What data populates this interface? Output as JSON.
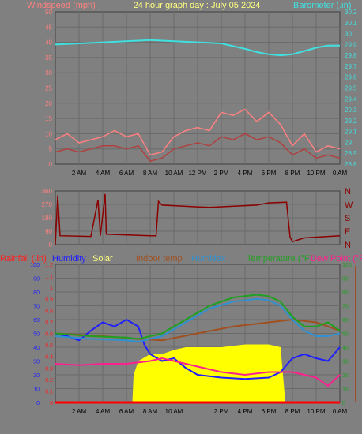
{
  "chart_data": [
    {
      "type": "line",
      "title": "24 hour graph day : July 05 2024",
      "left_axis": {
        "label": "Windspeed (mph)",
        "range": [
          0,
          50
        ],
        "ticks": [
          0,
          5,
          10,
          15,
          20,
          25,
          30,
          35,
          40,
          45,
          50
        ]
      },
      "right_axis": {
        "label": "Barometer (.in)",
        "range": [
          28.8,
          30.2
        ],
        "ticks": [
          28.8,
          28.9,
          29.0,
          29.1,
          29.2,
          29.3,
          29.4,
          29.5,
          29.6,
          29.7,
          29.8,
          29.9,
          30.0,
          30.1,
          30.2
        ],
        "tick_labels": [
          "28.8",
          "28.9",
          "29",
          "29.1",
          "29.2",
          "29.3",
          "29.4",
          "29.5",
          "29.6",
          "29.7",
          "29.8",
          "29.9",
          "30",
          "30.1",
          "30.2"
        ]
      },
      "x_hours_range": [
        0,
        24
      ],
      "x_ticks": [
        "2 AM",
        "4 AM",
        "6 AM",
        "8 AM",
        "10 AM",
        "12 PM",
        "2 PM",
        "4 PM",
        "6 PM",
        "8 PM",
        "10 PM",
        "0 AM"
      ],
      "series": [
        {
          "color": "#40e0e0",
          "axis": "right",
          "points": [
            [
              0,
              29.9
            ],
            [
              2,
              29.91
            ],
            [
              4,
              29.92
            ],
            [
              6,
              29.93
            ],
            [
              8,
              29.94
            ],
            [
              10,
              29.93
            ],
            [
              12,
              29.92
            ],
            [
              14,
              29.91
            ],
            [
              16,
              29.86
            ],
            [
              17,
              29.83
            ],
            [
              18,
              29.81
            ],
            [
              19,
              29.8
            ],
            [
              20,
              29.81
            ],
            [
              21,
              29.84
            ],
            [
              22,
              29.87
            ],
            [
              23,
              29.89
            ],
            [
              24,
              29.89
            ]
          ]
        },
        {
          "color": "#ff8080",
          "axis": "left",
          "points": [
            [
              0,
              8
            ],
            [
              1,
              10
            ],
            [
              2,
              7
            ],
            [
              3,
              8
            ],
            [
              4,
              9
            ],
            [
              5,
              11
            ],
            [
              6,
              9
            ],
            [
              7,
              10
            ],
            [
              8,
              3
            ],
            [
              9,
              4
            ],
            [
              10,
              9
            ],
            [
              11,
              11
            ],
            [
              12,
              12
            ],
            [
              13,
              11
            ],
            [
              14,
              17
            ],
            [
              15,
              16
            ],
            [
              16,
              18
            ],
            [
              17,
              14
            ],
            [
              18,
              17
            ],
            [
              19,
              13
            ],
            [
              20,
              6
            ],
            [
              21,
              10
            ],
            [
              22,
              4
            ],
            [
              23,
              6
            ],
            [
              24,
              5
            ]
          ]
        },
        {
          "color": "#b04040",
          "axis": "left",
          "points": [
            [
              0,
              4
            ],
            [
              1,
              5
            ],
            [
              2,
              4
            ],
            [
              3,
              5
            ],
            [
              4,
              6
            ],
            [
              5,
              6
            ],
            [
              6,
              5
            ],
            [
              7,
              6
            ],
            [
              8,
              1
            ],
            [
              9,
              2
            ],
            [
              10,
              5
            ],
            [
              11,
              6
            ],
            [
              12,
              7
            ],
            [
              13,
              6
            ],
            [
              14,
              9
            ],
            [
              15,
              8
            ],
            [
              16,
              10
            ],
            [
              17,
              8
            ],
            [
              18,
              9
            ],
            [
              19,
              7
            ],
            [
              20,
              3
            ],
            [
              21,
              5
            ],
            [
              22,
              2
            ],
            [
              23,
              3
            ],
            [
              24,
              2
            ]
          ]
        }
      ]
    },
    {
      "type": "line",
      "right_labels": [
        "N",
        "W",
        "S",
        "E",
        "N"
      ],
      "left_axis": {
        "range": [
          0,
          360
        ],
        "ticks": [
          0,
          90,
          180,
          270,
          360
        ]
      },
      "x_hours_range": [
        0,
        24
      ],
      "series": [
        {
          "color": "#8b0000",
          "axis": "left",
          "points": [
            [
              0,
              0
            ],
            [
              0.2,
              330
            ],
            [
              0.4,
              60
            ],
            [
              3,
              55
            ],
            [
              3.6,
              300
            ],
            [
              3.8,
              60
            ],
            [
              4.2,
              340
            ],
            [
              4.3,
              70
            ],
            [
              8,
              60
            ],
            [
              8.5,
              60
            ],
            [
              8.7,
              290
            ],
            [
              9,
              265
            ],
            [
              13,
              250
            ],
            [
              17,
              265
            ],
            [
              18,
              280
            ],
            [
              19.5,
              285
            ],
            [
              19.8,
              50
            ],
            [
              20,
              20
            ],
            [
              21,
              45
            ],
            [
              24,
              60
            ]
          ]
        }
      ]
    },
    {
      "type": "line",
      "legend": [
        "Rainfall (.in)",
        "Humidity",
        "Solar",
        "Indoor temp",
        "Humidex",
        "Temperature (°F)",
        "Dew Point (°F)"
      ],
      "left_axis": {
        "range": [
          0,
          100
        ],
        "ticks": [
          0,
          10,
          20,
          30,
          40,
          50,
          60,
          70,
          80,
          90,
          100
        ]
      },
      "rain_axis": {
        "range": [
          0,
          1.2
        ],
        "tick_labels": [
          "0",
          "0.1",
          "0.2",
          "0.3",
          "0.4",
          "0.5",
          "0.6",
          "0.7",
          "0.8",
          "0.9",
          "1",
          "1.1",
          "1.2"
        ]
      },
      "right_axis": {
        "range": [
          0,
          100
        ],
        "ticks": [
          0,
          10,
          20,
          30,
          40,
          50,
          60,
          70,
          80,
          90,
          100
        ]
      },
      "x_hours_range": [
        0,
        24
      ],
      "x_ticks": [
        "2 AM",
        "4 AM",
        "6 AM",
        "8 AM",
        "10 AM",
        "2 PM",
        "4 PM",
        "6 PM",
        "8 PM",
        "10 PM",
        "0 AM"
      ],
      "solar": {
        "color": "#ffff00",
        "points": [
          [
            6.5,
            0
          ],
          [
            6.6,
            20
          ],
          [
            7,
            30
          ],
          [
            8,
            35
          ],
          [
            9,
            35
          ],
          [
            10,
            38
          ],
          [
            11,
            40
          ],
          [
            12,
            40
          ],
          [
            14,
            40
          ],
          [
            16,
            42
          ],
          [
            18,
            42
          ],
          [
            19,
            40
          ],
          [
            19.4,
            0
          ]
        ]
      },
      "series": [
        {
          "name": "Humidity",
          "color": "#2020ff",
          "axis": "left",
          "points": [
            [
              0,
              50
            ],
            [
              1,
              48
            ],
            [
              2,
              45
            ],
            [
              3,
              52
            ],
            [
              4,
              58
            ],
            [
              5,
              55
            ],
            [
              6,
              60
            ],
            [
              7,
              55
            ],
            [
              7.5,
              42
            ],
            [
              8,
              35
            ],
            [
              9,
              30
            ],
            [
              10,
              32
            ],
            [
              11,
              25
            ],
            [
              12,
              20
            ],
            [
              14,
              18
            ],
            [
              16,
              17
            ],
            [
              18,
              18
            ],
            [
              19,
              22
            ],
            [
              20,
              32
            ],
            [
              21,
              35
            ],
            [
              22,
              32
            ],
            [
              23,
              30
            ],
            [
              24,
              40
            ]
          ]
        },
        {
          "name": "Dew Point (°F)",
          "color": "#ff2090",
          "axis": "right",
          "points": [
            [
              0,
              28
            ],
            [
              2,
              27
            ],
            [
              4,
              28
            ],
            [
              6,
              28
            ],
            [
              8,
              30
            ],
            [
              9,
              32
            ],
            [
              10,
              30
            ],
            [
              12,
              26
            ],
            [
              14,
              22
            ],
            [
              16,
              20
            ],
            [
              18,
              22
            ],
            [
              20,
              22
            ],
            [
              22,
              18
            ],
            [
              23,
              12
            ],
            [
              24,
              20
            ]
          ]
        },
        {
          "name": "Indoor temp",
          "color": "#a05020",
          "axis": "right",
          "points": [
            [
              0,
              50
            ],
            [
              4,
              48
            ],
            [
              7,
              46
            ],
            [
              9,
              45
            ],
            [
              12,
              50
            ],
            [
              15,
              55
            ],
            [
              18,
              58
            ],
            [
              20,
              60
            ],
            [
              22,
              58
            ],
            [
              24,
              52
            ]
          ]
        },
        {
          "name": "Humidex",
          "color": "#3090d0",
          "axis": "right",
          "points": [
            [
              0,
              48
            ],
            [
              3,
              46
            ],
            [
              6,
              45
            ],
            [
              7,
              44
            ],
            [
              9,
              48
            ],
            [
              11,
              58
            ],
            [
              13,
              68
            ],
            [
              15,
              73
            ],
            [
              17,
              75
            ],
            [
              18,
              74
            ],
            [
              19,
              70
            ],
            [
              20,
              60
            ],
            [
              21,
              52
            ],
            [
              22,
              48
            ],
            [
              23,
              48
            ],
            [
              24,
              50
            ]
          ]
        },
        {
          "name": "Temperature (°F)",
          "color": "#20a020",
          "axis": "right",
          "points": [
            [
              0,
              50
            ],
            [
              3,
              48
            ],
            [
              6,
              47
            ],
            [
              7,
              46
            ],
            [
              9,
              50
            ],
            [
              11,
              60
            ],
            [
              13,
              70
            ],
            [
              15,
              76
            ],
            [
              17,
              78
            ],
            [
              18,
              77
            ],
            [
              19,
              73
            ],
            [
              20,
              62
            ],
            [
              21,
              55
            ],
            [
              22,
              55
            ],
            [
              23,
              58
            ],
            [
              24,
              52
            ]
          ]
        },
        {
          "name": "Rainfall (.in)",
          "color": "#ff0000",
          "axis": "left",
          "points": [
            [
              0,
              0
            ],
            [
              24,
              0
            ]
          ]
        }
      ]
    }
  ]
}
